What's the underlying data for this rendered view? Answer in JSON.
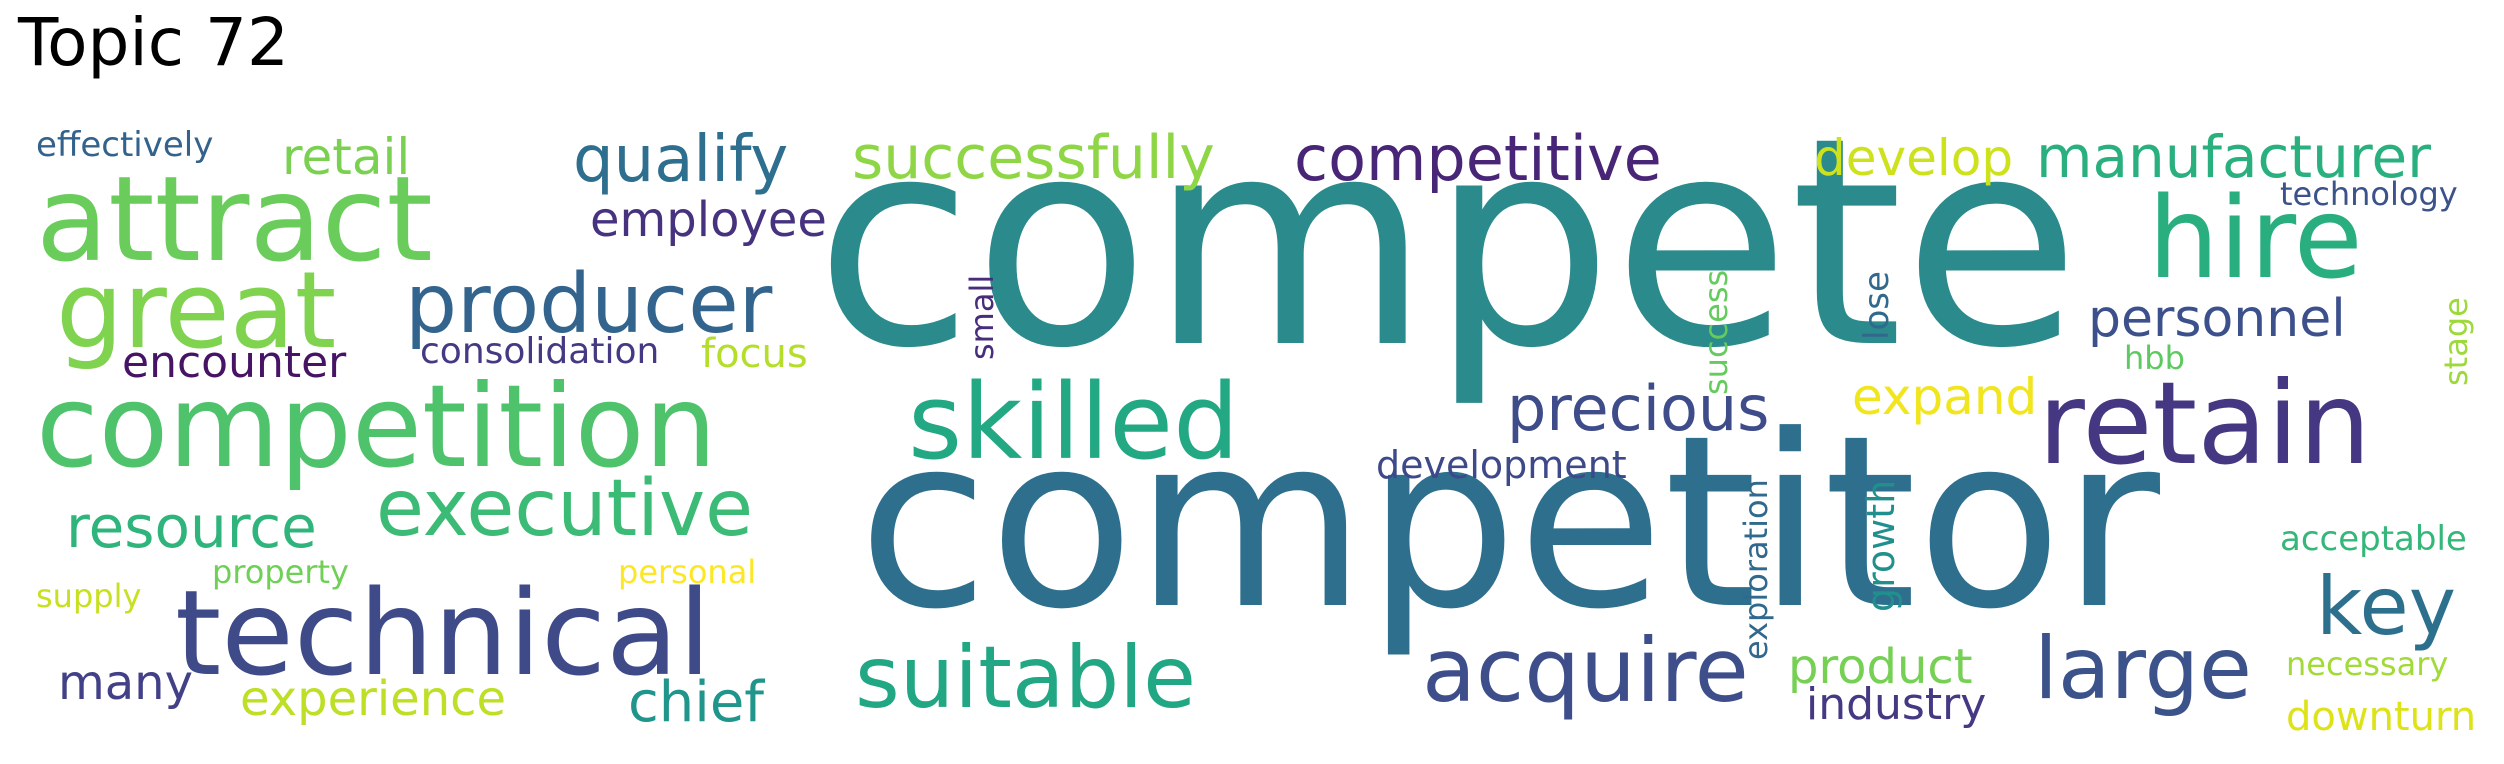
{
  "title": "Topic 72",
  "words": [
    {
      "text": "compete",
      "color": "#2a8a8c"
    },
    {
      "text": "competitor",
      "color": "#2f6f8e"
    },
    {
      "text": "attract",
      "color": "#6acd5b"
    },
    {
      "text": "competition",
      "color": "#4ec36b"
    },
    {
      "text": "great",
      "color": "#7fd34e"
    },
    {
      "text": "technical",
      "color": "#3f4a89"
    },
    {
      "text": "retain",
      "color": "#453781"
    },
    {
      "text": "hire",
      "color": "#29af7f"
    },
    {
      "text": "skilled",
      "color": "#23a884"
    },
    {
      "text": "producer",
      "color": "#32648e"
    },
    {
      "text": "executive",
      "color": "#3bbb75"
    },
    {
      "text": "suitable",
      "color": "#22a785"
    },
    {
      "text": "acquire",
      "color": "#3d4e8a"
    },
    {
      "text": "large",
      "color": "#3b528b"
    },
    {
      "text": "key",
      "color": "#2d708e"
    },
    {
      "text": "successfully",
      "color": "#8ed645"
    },
    {
      "text": "competitive",
      "color": "#482576"
    },
    {
      "text": "manufacturer",
      "color": "#2ab07f"
    },
    {
      "text": "qualify",
      "color": "#2e6e8e"
    },
    {
      "text": "precious",
      "color": "#3e4c8a"
    },
    {
      "text": "resource",
      "color": "#2fb47c"
    },
    {
      "text": "develop",
      "color": "#cde11d"
    },
    {
      "text": "personnel",
      "color": "#3c508b"
    },
    {
      "text": "employee",
      "color": "#46327e"
    },
    {
      "text": "encounter",
      "color": "#471365"
    },
    {
      "text": "retail",
      "color": "#7ad151"
    },
    {
      "text": "chief",
      "color": "#1f958b"
    },
    {
      "text": "experience",
      "color": "#bddf26"
    },
    {
      "text": "many",
      "color": "#424086"
    },
    {
      "text": "product",
      "color": "#75d054"
    },
    {
      "text": "industry",
      "color": "#443983"
    },
    {
      "text": "expand",
      "color": "#f1e51d"
    },
    {
      "text": "development",
      "color": "#3e4989"
    },
    {
      "text": "consolidation",
      "color": "#443a83"
    },
    {
      "text": "focus",
      "color": "#b5de2b"
    },
    {
      "text": "effectively",
      "color": "#33638d"
    },
    {
      "text": "technology",
      "color": "#3b528b"
    },
    {
      "text": "acceptable",
      "color": "#35b779"
    },
    {
      "text": "necessary",
      "color": "#a2da37"
    },
    {
      "text": "downturn",
      "color": "#dde318"
    },
    {
      "text": "hbb",
      "color": "#5ec962"
    },
    {
      "text": "property",
      "color": "#70cf57"
    },
    {
      "text": "supply",
      "color": "#c8e020"
    },
    {
      "text": "personal",
      "color": "#fde725"
    },
    {
      "text": "small",
      "color": "#472d7b"
    },
    {
      "text": "success",
      "color": "#65cb5e"
    },
    {
      "text": "lose",
      "color": "#31688e"
    },
    {
      "text": "growth",
      "color": "#218f8d"
    },
    {
      "text": "exploration",
      "color": "#31688e"
    },
    {
      "text": "stage",
      "color": "#9dd93b"
    }
  ]
}
